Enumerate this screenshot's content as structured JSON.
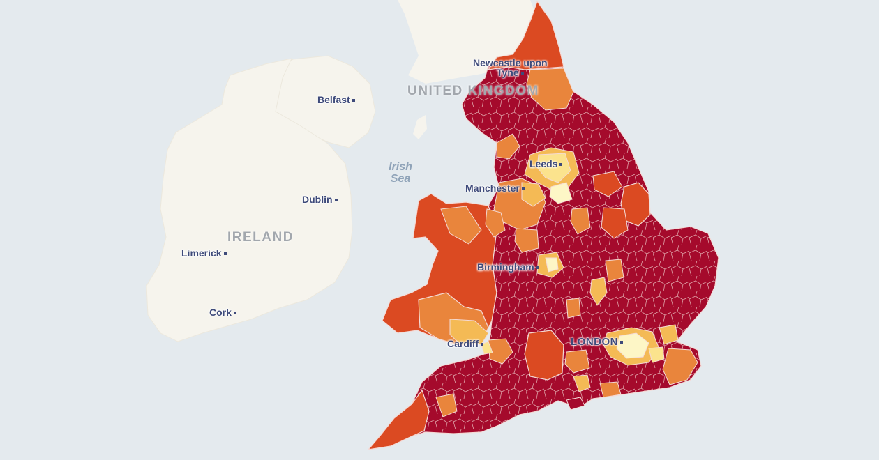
{
  "map": {
    "country_labels": {
      "uk": "UNITED KINGDOM",
      "ireland": "IRELAND"
    },
    "sea_labels": {
      "irish_sea_line1": "Irish",
      "irish_sea_line2": "Sea"
    },
    "cities": {
      "newcastle_line1": "Newcastle upon",
      "newcastle_line2": "Tyne",
      "belfast": "Belfast",
      "leeds": "Leeds",
      "manchester": "Manchester",
      "dublin": "Dublin",
      "limerick": "Limerick",
      "birmingham": "Birmingham",
      "cork": "Cork",
      "cardiff": "Cardiff",
      "london": "LONDON"
    },
    "colors": {
      "sea": "#e4eaee",
      "land_other": "#f6f4ed",
      "darkest": "#a50a2c",
      "dark_orange": "#db4a22",
      "orange": "#e9853c",
      "light_orange": "#f4ba55",
      "yellow": "#fbe38d",
      "pale": "#fdf6c6",
      "boundary": "#f4dad6",
      "city_text": "#3e4a7a"
    }
  }
}
